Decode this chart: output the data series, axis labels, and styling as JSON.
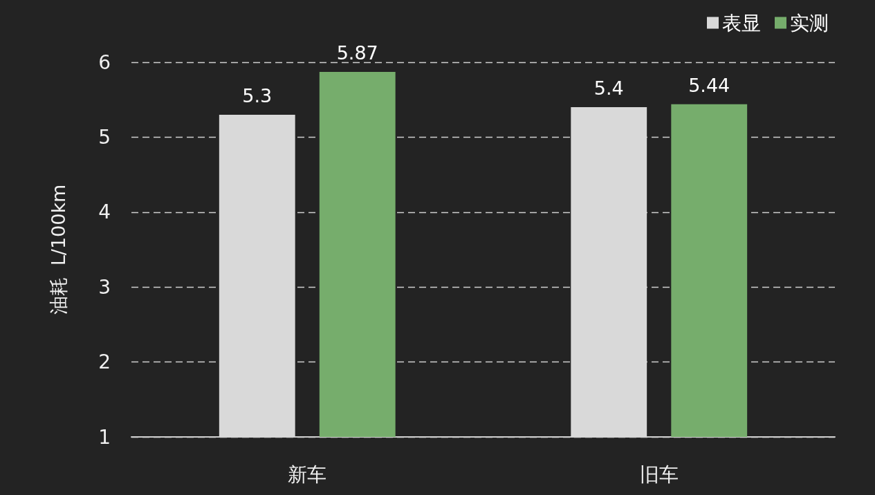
{
  "chart_data": {
    "type": "bar",
    "ylabel": "油耗  L/100km",
    "categories": [
      "新车",
      "旧车"
    ],
    "series": [
      {
        "name": "表显",
        "color": "#d9d9d9",
        "values": [
          5.3,
          5.4
        ]
      },
      {
        "name": "实测",
        "color": "#76ad6c",
        "values": [
          5.87,
          5.44
        ]
      }
    ],
    "ylim": [
      1,
      6
    ],
    "yticks": [
      1,
      2,
      3,
      4,
      5,
      6
    ],
    "grid": "y",
    "legend": "top right",
    "data_labels": true
  }
}
